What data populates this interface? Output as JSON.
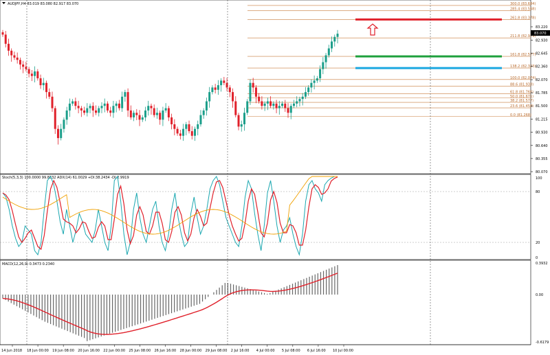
{
  "main": {
    "header": "AUDJPY,H4  83.019 83.080 82.917 83.070",
    "price_ticks": [
      "83.220",
      "82.930",
      "82.645",
      "82.360",
      "82.070",
      "81.785",
      "81.500",
      "81.215",
      "80.930",
      "80.640",
      "80.355",
      "80.070"
    ],
    "current_price": "83.070",
    "fib_levels": [
      {
        "label": "300.0 (83.684)",
        "price": 83.684
      },
      {
        "label": "285.4 (83.568)",
        "price": 83.568
      },
      {
        "label": "261.8 (83.378)",
        "price": 83.378
      },
      {
        "label": "211.8 (82.979)",
        "price": 82.979
      },
      {
        "label": "161.8 (82.577)",
        "price": 82.577
      },
      {
        "label": "138.2 (82.323)",
        "price": 82.323
      },
      {
        "label": "100.0 (82.074)",
        "price": 82.074
      },
      {
        "label": "88.6 (81.930)",
        "price": 81.93
      },
      {
        "label": "61.8 (81.766)",
        "price": 81.766
      },
      {
        "label": "50.0 (81.671)",
        "price": 81.671
      },
      {
        "label": "38.2 (81.577)",
        "price": 81.577
      },
      {
        "label": "23.6 (81.458)",
        "price": 81.458
      },
      {
        "label": "0.0 (81.268)",
        "price": 81.268
      }
    ],
    "target_lines": [
      {
        "color": "#e0202a",
        "price": 83.378
      },
      {
        "color": "#1ea03c",
        "price": 82.577
      },
      {
        "color": "#1aa7e0",
        "price": 82.323
      }
    ],
    "colors": {
      "bull": "#1b9e8a",
      "bear": "#e0202a",
      "fib": "#c87a3a",
      "grid": "#888888"
    }
  },
  "stoch": {
    "header": "Stoch(5,3,3) 100.0000 99.8332  ADX(14) 61.0029 +DI:38.2434 -DI:2.9919",
    "ticks": [
      "100",
      "80",
      "20",
      "0"
    ]
  },
  "macd": {
    "header": "MACD(12,26,9) 0.3473 0.2340",
    "ticks": [
      "0.3932",
      "0.00",
      "-0.6179"
    ]
  },
  "time_axis": [
    "14 Jun 2018",
    "18 Jun 00:00",
    "19 Jun 08:00",
    "20 Jun 16:00",
    "22 Jun 00:00",
    "25 Jun 08:00",
    "26 Jun 16:00",
    "28 Jun 00:00",
    "29 Jun 08:00",
    "2 Jul 16:00",
    "4 Jul 00:00",
    "5 Jul 08:00",
    "6 Jul 16:00",
    "10 Jul 00:00"
  ]
}
